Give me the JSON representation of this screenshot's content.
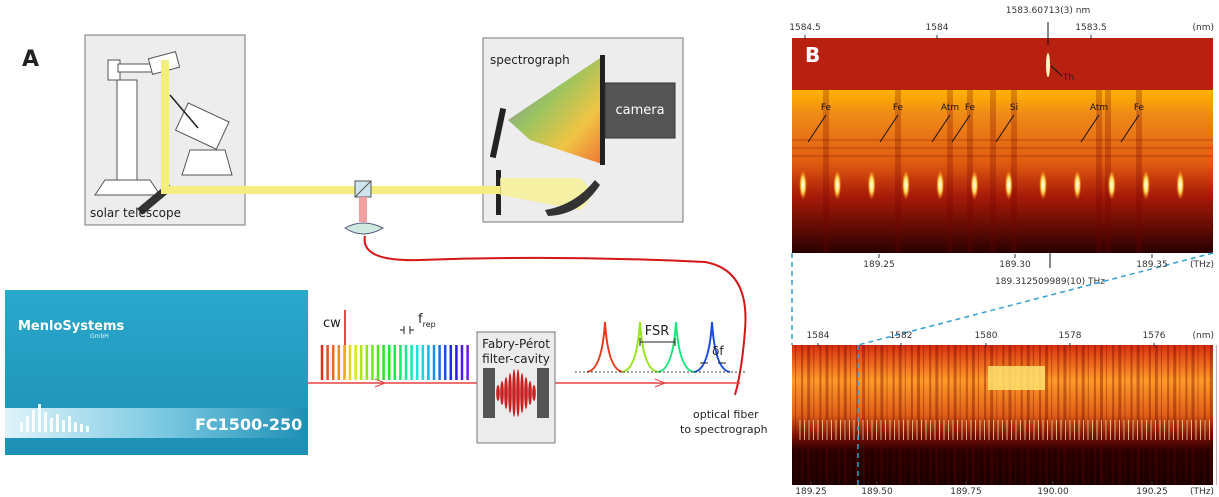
{
  "panel_a": {
    "label": "A",
    "solar_telescope": "solar telescope",
    "spectrograph": "spectrograph",
    "camera": "camera",
    "cw": "cw",
    "f_rep": {
      "symbol": "f",
      "subscript": "rep"
    },
    "cavity": [
      "Fabry-Pérot",
      "filter-cavity"
    ],
    "fsr": "FSR",
    "delta_f": "δf",
    "fiber": [
      "optical fiber",
      "to spectrograph"
    ],
    "comb": {
      "brand": "MenloSystems",
      "company": "GmbH",
      "model": "FC1500-250"
    }
  },
  "panel_b": {
    "label": "B",
    "upper": {
      "nm_ticks": [
        "1584.5",
        "1584",
        "1583.5"
      ],
      "nm_unit": "(nm)",
      "line_label": "1583.60713(3) nm",
      "th_label": "Th",
      "lines": [
        "Fe",
        "Fe",
        "Atm",
        "Fe",
        "Si",
        "Atm",
        "Fe"
      ],
      "thz_ticks": [
        "189.25",
        "189.30",
        "189.35"
      ],
      "thz_unit": "(THz)",
      "freq_label": "189.312509989(10) THz"
    },
    "lower": {
      "nm_ticks": [
        "1584",
        "1582",
        "1580",
        "1578",
        "1576"
      ],
      "nm_unit": "(nm)",
      "thz_ticks": [
        "189.25",
        "189.50",
        "189.75",
        "190.00",
        "190.25"
      ],
      "thz_unit": "(THz)"
    }
  }
}
